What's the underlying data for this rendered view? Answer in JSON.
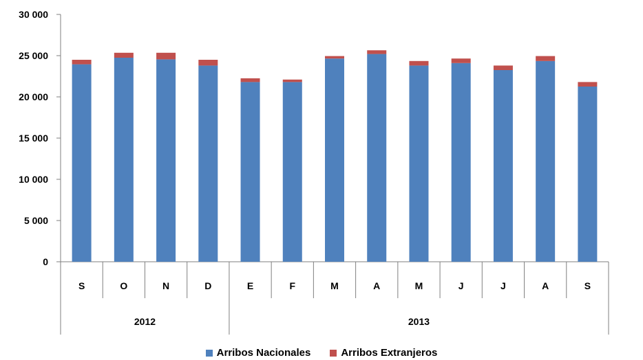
{
  "chart_data": {
    "type": "bar",
    "stacked": true,
    "categories": [
      "S",
      "O",
      "N",
      "D",
      "E",
      "F",
      "M",
      "A",
      "M",
      "J",
      "J",
      "A",
      "S"
    ],
    "groups": [
      {
        "label": "2012",
        "count": 4
      },
      {
        "label": "2013",
        "count": 9
      }
    ],
    "series": [
      {
        "name": "Arribos Nacionales",
        "color": "#4F81BD",
        "values": [
          23950,
          24750,
          24550,
          23800,
          21800,
          21800,
          24650,
          25200,
          23800,
          24100,
          23250,
          24350,
          21250
        ]
      },
      {
        "name": "Arribos Extranjeros",
        "color": "#C0504D",
        "values": [
          550,
          600,
          800,
          700,
          450,
          300,
          300,
          450,
          550,
          550,
          550,
          600,
          550
        ]
      }
    ],
    "ylim": [
      0,
      30000
    ],
    "yticks": [
      0,
      5000,
      10000,
      15000,
      20000,
      25000,
      30000
    ],
    "ytick_labels": [
      "0",
      "5 000",
      "10 000",
      "15 000",
      "20 000",
      "25 000",
      "30 000"
    ],
    "grid": false,
    "legend_position": "bottom"
  }
}
